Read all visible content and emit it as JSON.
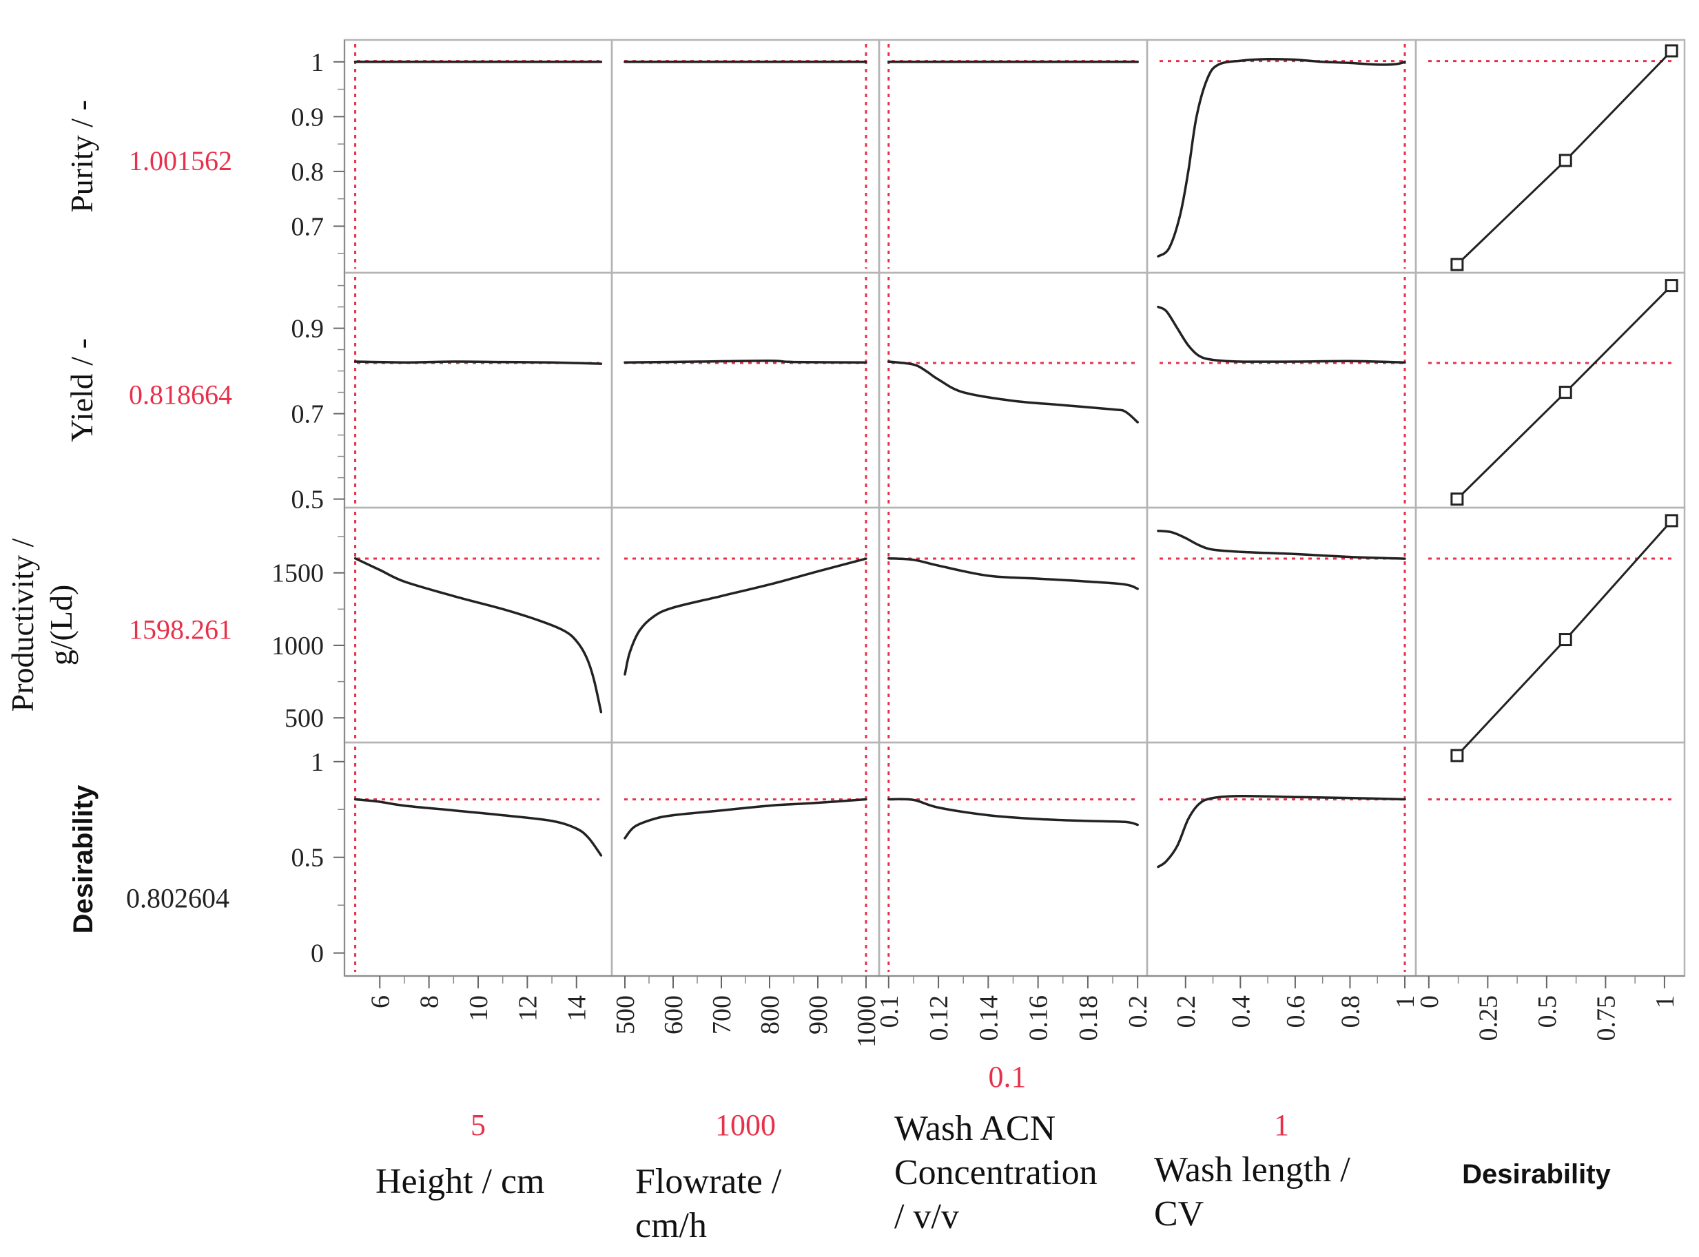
{
  "chart_data": {
    "type": "line",
    "title": "Prediction Profiler",
    "reference_color": "#e8304a",
    "curve_color": "#222222",
    "factors": [
      {
        "name": "Height / cm",
        "label_lines": [
          "Height / cm"
        ],
        "current_value": "5",
        "current_x": 5,
        "x_range": [
          4.9,
          15.1
        ],
        "ticks": [
          6,
          8,
          10,
          12,
          14
        ],
        "tick_labels": [
          "6",
          "8",
          "10",
          "12",
          "14"
        ]
      },
      {
        "name": "Flowrate / cm/h",
        "label_lines": [
          "Flowrate /",
          "cm/h"
        ],
        "current_value": "1000",
        "current_x": 1000,
        "x_range": [
          490,
          1010
        ],
        "ticks": [
          500,
          600,
          700,
          800,
          900,
          1000
        ],
        "tick_labels": [
          "500",
          "600",
          "700",
          "800",
          "900",
          "1000"
        ]
      },
      {
        "name": "Wash ACN Concentration / v/v",
        "label_lines": [
          "Wash ACN",
          "Concentration",
          "/ v/v"
        ],
        "current_value": "0.1",
        "current_x": 0.1,
        "x_range": [
          0.0995,
          0.2005
        ],
        "ticks": [
          0.1,
          0.12,
          0.14,
          0.16,
          0.18,
          0.2
        ],
        "tick_labels": [
          "0.1",
          "0.12",
          "0.14",
          "0.16",
          "0.18",
          "0.2"
        ]
      },
      {
        "name": "Wash length / CV",
        "label_lines": [
          "Wash length /",
          "CV"
        ],
        "current_value": "1",
        "current_x": 1,
        "x_range": [
          0.09,
          1.01
        ],
        "ticks": [
          0.2,
          0.4,
          0.6,
          0.8,
          1
        ],
        "tick_labels": [
          "0.2",
          "0.4",
          "0.6",
          "0.8",
          "1"
        ]
      },
      {
        "name": "Desirability",
        "label_lines": [
          "Desirability"
        ],
        "current_value": "",
        "x_range": [
          -0.02,
          1.05
        ],
        "ticks": [
          0,
          0.25,
          0.5,
          0.75,
          1
        ],
        "tick_labels": [
          "0",
          "0.25",
          "0.5",
          "0.75",
          "1"
        ]
      }
    ],
    "responses": [
      {
        "name": "Purity / -",
        "label_lines": [
          "Purity / -"
        ],
        "current_value": "1.001562",
        "current_y": 1.001562,
        "y_range": [
          0.615,
          1.04
        ],
        "ticks": [
          0.7,
          0.8,
          0.9,
          1
        ],
        "tick_labels": [
          "0.7",
          "0.8",
          "0.9",
          "1"
        ],
        "minor_ticks": [
          0.65,
          0.75,
          0.85,
          0.95
        ],
        "curves": [
          [
            [
              5,
              1.0
            ],
            [
              7,
              1.0
            ],
            [
              9,
              1.0
            ],
            [
              11,
              1.0
            ],
            [
              13,
              1.0
            ],
            [
              15,
              1.0
            ]
          ],
          [
            [
              500,
              1.0
            ],
            [
              650,
              1.0
            ],
            [
              800,
              1.0
            ],
            [
              1000,
              1.0
            ]
          ],
          [
            [
              0.1,
              1.0
            ],
            [
              0.13,
              1.0
            ],
            [
              0.16,
              1.0
            ],
            [
              0.2,
              1.0
            ]
          ],
          [
            [
              0.1,
              0.645
            ],
            [
              0.14,
              0.66
            ],
            [
              0.18,
              0.72
            ],
            [
              0.21,
              0.8
            ],
            [
              0.24,
              0.9
            ],
            [
              0.28,
              0.97
            ],
            [
              0.32,
              0.995
            ],
            [
              0.4,
              1.002
            ],
            [
              0.5,
              1.005
            ],
            [
              0.6,
              1.004
            ],
            [
              0.7,
              1.0
            ],
            [
              0.8,
              0.998
            ],
            [
              0.9,
              0.995
            ],
            [
              0.97,
              0.996
            ],
            [
              1.0,
              1.0
            ]
          ]
        ],
        "desirability_points": [
          [
            0.12,
            0.63
          ],
          [
            0.58,
            0.82
          ],
          [
            1.03,
            1.02
          ]
        ]
      },
      {
        "name": "Yield / -",
        "label_lines": [
          "Yield / -"
        ],
        "current_value": "0.818664",
        "current_y": 0.818664,
        "y_range": [
          0.48,
          1.03
        ],
        "ticks": [
          0.5,
          0.7,
          0.9
        ],
        "tick_labels": [
          "0.5",
          "0.7",
          "0.9"
        ],
        "minor_ticks": [
          0.55,
          0.6,
          0.65,
          0.75,
          0.8,
          0.85,
          0.95,
          1.0
        ],
        "curves": [
          [
            [
              5,
              0.822
            ],
            [
              7,
              0.82
            ],
            [
              9,
              0.822
            ],
            [
              11,
              0.821
            ],
            [
              13,
              0.82
            ],
            [
              15,
              0.817
            ]
          ],
          [
            [
              500,
              0.82
            ],
            [
              650,
              0.822
            ],
            [
              800,
              0.824
            ],
            [
              850,
              0.821
            ],
            [
              1000,
              0.82
            ]
          ],
          [
            [
              0.1,
              0.822
            ],
            [
              0.11,
              0.815
            ],
            [
              0.115,
              0.8
            ],
            [
              0.12,
              0.78
            ],
            [
              0.13,
              0.75
            ],
            [
              0.15,
              0.73
            ],
            [
              0.17,
              0.72
            ],
            [
              0.19,
              0.71
            ],
            [
              0.195,
              0.705
            ],
            [
              0.2,
              0.68
            ]
          ],
          [
            [
              0.1,
              0.95
            ],
            [
              0.13,
              0.94
            ],
            [
              0.17,
              0.9
            ],
            [
              0.21,
              0.86
            ],
            [
              0.25,
              0.835
            ],
            [
              0.3,
              0.826
            ],
            [
              0.4,
              0.822
            ],
            [
              0.6,
              0.822
            ],
            [
              0.8,
              0.823
            ],
            [
              1.0,
              0.82
            ]
          ]
        ],
        "desirability_points": [
          [
            0.12,
            0.5
          ],
          [
            0.58,
            0.75
          ],
          [
            1.03,
            1.0
          ]
        ]
      },
      {
        "name": "Productivity / g/(Ld)",
        "label_lines": [
          "Productivity /",
          "g/(Ld)"
        ],
        "current_value": "1598.261",
        "current_y": 1598.261,
        "y_range": [
          330,
          1950
        ],
        "ticks": [
          500,
          1000,
          1500
        ],
        "tick_labels": [
          "500",
          "1000",
          "1500"
        ],
        "minor_ticks": [
          750,
          1250,
          1750
        ],
        "curves": [
          [
            [
              5,
              1600
            ],
            [
              6,
              1520
            ],
            [
              7,
              1440
            ],
            [
              9,
              1340
            ],
            [
              11,
              1250
            ],
            [
              12.5,
              1170
            ],
            [
              13.5,
              1100
            ],
            [
              14,
              1030
            ],
            [
              14.4,
              920
            ],
            [
              14.7,
              770
            ],
            [
              15,
              540
            ]
          ],
          [
            [
              500,
              800
            ],
            [
              510,
              950
            ],
            [
              530,
              1100
            ],
            [
              560,
              1200
            ],
            [
              600,
              1260
            ],
            [
              700,
              1340
            ],
            [
              800,
              1420
            ],
            [
              900,
              1510
            ],
            [
              1000,
              1598
            ]
          ],
          [
            [
              0.1,
              1600
            ],
            [
              0.11,
              1590
            ],
            [
              0.12,
              1550
            ],
            [
              0.14,
              1480
            ],
            [
              0.16,
              1460
            ],
            [
              0.18,
              1440
            ],
            [
              0.195,
              1420
            ],
            [
              0.2,
              1390
            ]
          ],
          [
            [
              0.1,
              1790
            ],
            [
              0.15,
              1780
            ],
            [
              0.2,
              1740
            ],
            [
              0.25,
              1690
            ],
            [
              0.3,
              1660
            ],
            [
              0.4,
              1645
            ],
            [
              0.6,
              1630
            ],
            [
              0.8,
              1610
            ],
            [
              1.0,
              1598
            ]
          ]
        ],
        "desirability_points": [
          [
            0.12,
            240
          ],
          [
            0.58,
            1040
          ],
          [
            1.03,
            1860
          ]
        ]
      },
      {
        "name": "Desirability",
        "label_lines": [
          "Desirability"
        ],
        "current_value": "0.802604",
        "current_y": 0.802604,
        "y_range": [
          -0.12,
          1.1
        ],
        "ticks": [
          0,
          0.5,
          1
        ],
        "tick_labels": [
          "0",
          "0.5",
          "1"
        ],
        "minor_ticks": [
          0.25,
          0.75
        ],
        "curves": [
          [
            [
              5,
              0.803
            ],
            [
              6,
              0.79
            ],
            [
              7,
              0.77
            ],
            [
              9,
              0.745
            ],
            [
              11,
              0.72
            ],
            [
              13,
              0.69
            ],
            [
              14,
              0.65
            ],
            [
              14.5,
              0.6
            ],
            [
              15,
              0.51
            ]
          ],
          [
            [
              500,
              0.6
            ],
            [
              520,
              0.66
            ],
            [
              560,
              0.7
            ],
            [
              600,
              0.72
            ],
            [
              700,
              0.745
            ],
            [
              800,
              0.77
            ],
            [
              900,
              0.785
            ],
            [
              1000,
              0.803
            ]
          ],
          [
            [
              0.1,
              0.803
            ],
            [
              0.11,
              0.8
            ],
            [
              0.12,
              0.76
            ],
            [
              0.14,
              0.72
            ],
            [
              0.16,
              0.7
            ],
            [
              0.18,
              0.69
            ],
            [
              0.195,
              0.685
            ],
            [
              0.2,
              0.67
            ]
          ],
          [
            [
              0.1,
              0.45
            ],
            [
              0.13,
              0.48
            ],
            [
              0.17,
              0.56
            ],
            [
              0.21,
              0.7
            ],
            [
              0.25,
              0.78
            ],
            [
              0.3,
              0.81
            ],
            [
              0.4,
              0.82
            ],
            [
              0.6,
              0.815
            ],
            [
              0.8,
              0.81
            ],
            [
              1.0,
              0.803
            ]
          ]
        ],
        "desirability_points": []
      }
    ]
  }
}
